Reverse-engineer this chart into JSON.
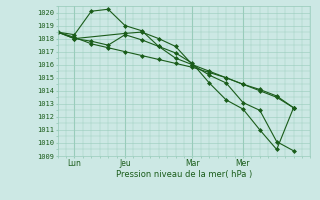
{
  "xlabel": "Pression niveau de la mer( hPa )",
  "ylim": [
    1009,
    1020.5
  ],
  "xlim": [
    0,
    30
  ],
  "background_color": "#cce8e4",
  "grid_color": "#99ccbb",
  "line_color": "#1a5c1a",
  "tick_label_color": "#1a5c1a",
  "xlabel_color": "#1a5c1a",
  "xtick_positions": [
    2,
    8,
    16,
    22
  ],
  "xtick_labels": [
    "Lun",
    "Jeu",
    "Mar",
    "Mer"
  ],
  "ytick_start": 1009,
  "ytick_end": 1020,
  "series1_x": [
    0,
    2,
    4,
    6,
    8,
    10,
    12,
    14,
    16,
    18,
    20,
    22,
    24,
    26,
    28
  ],
  "series1_y": [
    1018.5,
    1018.3,
    1020.1,
    1020.25,
    1019.0,
    1018.6,
    1017.4,
    1016.9,
    1016.1,
    1014.6,
    1013.3,
    1012.6,
    1011.0,
    1009.5,
    1012.7
  ],
  "series2_x": [
    0,
    2,
    4,
    6,
    8,
    10,
    12,
    14,
    16,
    18,
    20,
    22,
    24,
    26,
    28
  ],
  "series2_y": [
    1018.5,
    1018.0,
    1017.8,
    1017.5,
    1018.3,
    1017.9,
    1017.4,
    1016.5,
    1016.0,
    1015.2,
    1014.6,
    1013.1,
    1012.5,
    1010.1,
    1009.4
  ],
  "series3_x": [
    0,
    2,
    4,
    6,
    8,
    10,
    12,
    14,
    16,
    18,
    20,
    22,
    24,
    26,
    28
  ],
  "series3_y": [
    1018.5,
    1018.1,
    1017.6,
    1017.3,
    1017.0,
    1016.7,
    1016.4,
    1016.1,
    1015.8,
    1015.4,
    1015.0,
    1014.5,
    1014.1,
    1013.6,
    1012.7
  ],
  "series4_x": [
    0,
    2,
    8,
    10,
    12,
    14,
    16,
    18,
    20,
    22,
    24,
    26,
    28
  ],
  "series4_y": [
    1018.5,
    1018.0,
    1018.4,
    1018.5,
    1018.0,
    1017.4,
    1016.0,
    1015.5,
    1015.0,
    1014.5,
    1014.0,
    1013.5,
    1012.7
  ]
}
